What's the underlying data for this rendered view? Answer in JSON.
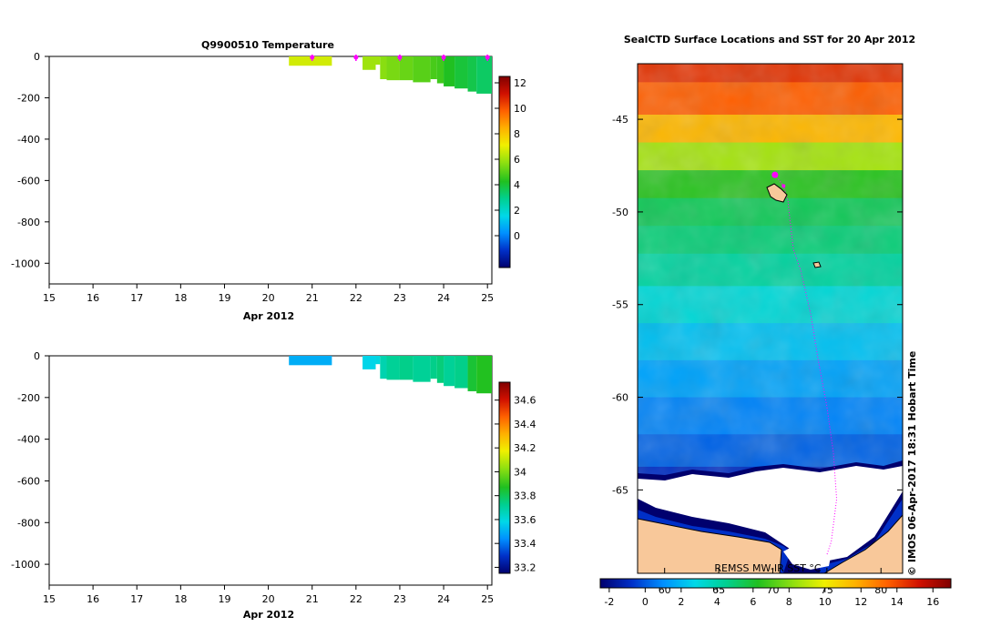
{
  "colors": {
    "land": "#f8c89a",
    "ice": "#ffffff",
    "track": "#ff00ff",
    "temp_colormap": [
      "#00006e",
      "#0030c8",
      "#0090ff",
      "#00d8e8",
      "#00d090",
      "#20c020",
      "#90e010",
      "#f0f000",
      "#ffb000",
      "#ff6000",
      "#d01000",
      "#800000"
    ],
    "sal_colormap": [
      "#00006e",
      "#0030c8",
      "#0090ff",
      "#00d8e8",
      "#00d090",
      "#20c020",
      "#90e010",
      "#f0f000",
      "#ffb000",
      "#ff6000",
      "#d01000",
      "#800000"
    ],
    "sst_colormap": [
      "#00006e",
      "#0030c8",
      "#0090ff",
      "#00d8e8",
      "#00d090",
      "#20c020",
      "#90e010",
      "#f0f000",
      "#ffb000",
      "#ff6000",
      "#d01000",
      "#800000"
    ]
  },
  "chart_data": [
    {
      "id": "temperature",
      "type": "heatmap",
      "title": "Q9900510  Temperature",
      "xlabel": "Apr 2012",
      "x_ticks": [
        "15",
        "16",
        "17",
        "18",
        "19",
        "20",
        "21",
        "22",
        "23",
        "24",
        "25"
      ],
      "xlim": [
        15,
        25.1
      ],
      "y_ticks": [
        "0",
        "-200",
        "-400",
        "-600",
        "-800",
        "-1000"
      ],
      "ylim": [
        -1100,
        0
      ],
      "colorbar": {
        "ticks": [
          "0",
          "2",
          "4",
          "6",
          "8",
          "10",
          "12"
        ],
        "range": [
          -2.5,
          12.5
        ]
      },
      "profile_markers_x": [
        21.0,
        22.0,
        23.0,
        24.0,
        25.0
      ],
      "cells": [
        {
          "x0": 20.47,
          "x1": 21.45,
          "y0": 0,
          "y1": -45,
          "v": 6.6
        },
        {
          "x0": 22.15,
          "x1": 22.45,
          "y0": 0,
          "y1": -65,
          "v": 5.9
        },
        {
          "x0": 22.45,
          "x1": 22.55,
          "y0": 0,
          "y1": -40,
          "v": 5.9
        },
        {
          "x0": 22.55,
          "x1": 22.7,
          "y0": 0,
          "y1": -110,
          "v": 5.6
        },
        {
          "x0": 22.7,
          "x1": 23.0,
          "y0": 0,
          "y1": -115,
          "v": 5.4
        },
        {
          "x0": 23.0,
          "x1": 23.3,
          "y0": 0,
          "y1": -115,
          "v": 5.2
        },
        {
          "x0": 23.3,
          "x1": 23.7,
          "y0": 0,
          "y1": -125,
          "v": 5.0
        },
        {
          "x0": 23.7,
          "x1": 23.85,
          "y0": 0,
          "y1": -110,
          "v": 4.8
        },
        {
          "x0": 23.85,
          "x1": 24.0,
          "y0": 0,
          "y1": -130,
          "v": 4.7
        },
        {
          "x0": 24.0,
          "x1": 24.25,
          "y0": 0,
          "y1": -145,
          "v": 4.3
        },
        {
          "x0": 24.25,
          "x1": 24.55,
          "y0": 0,
          "y1": -155,
          "v": 4.0
        },
        {
          "x0": 24.55,
          "x1": 24.75,
          "y0": 0,
          "y1": -170,
          "v": 3.8
        },
        {
          "x0": 24.75,
          "x1": 25.1,
          "y0": 0,
          "y1": -180,
          "v": 3.5
        }
      ]
    },
    {
      "id": "salinity",
      "type": "heatmap",
      "title": "",
      "xlabel": "Apr 2012",
      "x_ticks": [
        "15",
        "16",
        "17",
        "18",
        "19",
        "20",
        "21",
        "22",
        "23",
        "24",
        "25"
      ],
      "xlim": [
        15,
        25.1
      ],
      "y_ticks": [
        "0",
        "-200",
        "-400",
        "-600",
        "-800",
        "-1000"
      ],
      "ylim": [
        -1100,
        0
      ],
      "colorbar": {
        "ticks": [
          "33.2",
          "33.4",
          "33.6",
          "33.8",
          "34",
          "34.2",
          "34.4",
          "34.6"
        ],
        "range": [
          33.15,
          34.75
        ]
      },
      "cells": [
        {
          "x0": 20.47,
          "x1": 21.45,
          "y0": 0,
          "y1": -45,
          "v": 33.5
        },
        {
          "x0": 22.15,
          "x1": 22.45,
          "y0": 0,
          "y1": -65,
          "v": 33.58
        },
        {
          "x0": 22.45,
          "x1": 22.55,
          "y0": 0,
          "y1": -40,
          "v": 33.6
        },
        {
          "x0": 22.55,
          "x1": 22.7,
          "y0": 0,
          "y1": -110,
          "v": 33.68
        },
        {
          "x0": 22.7,
          "x1": 23.0,
          "y0": 0,
          "y1": -115,
          "v": 33.72
        },
        {
          "x0": 23.0,
          "x1": 23.3,
          "y0": 0,
          "y1": -115,
          "v": 33.74
        },
        {
          "x0": 23.3,
          "x1": 23.7,
          "y0": 0,
          "y1": -125,
          "v": 33.72
        },
        {
          "x0": 23.7,
          "x1": 23.85,
          "y0": 0,
          "y1": -110,
          "v": 33.74
        },
        {
          "x0": 23.85,
          "x1": 24.0,
          "y0": 0,
          "y1": -130,
          "v": 33.76
        },
        {
          "x0": 24.0,
          "x1": 24.25,
          "y0": 0,
          "y1": -145,
          "v": 33.72
        },
        {
          "x0": 24.25,
          "x1": 24.55,
          "y0": 0,
          "y1": -155,
          "v": 33.74
        },
        {
          "x0": 24.55,
          "x1": 24.75,
          "y0": 0,
          "y1": -170,
          "v": 33.85
        },
        {
          "x0": 24.75,
          "x1": 25.1,
          "y0": 0,
          "y1": -180,
          "v": 33.88
        }
      ]
    },
    {
      "id": "sst-map",
      "type": "heatmap",
      "title": "SealCTD Surface Locations and SST for 20 Apr 2012",
      "y_ticks": [
        "-45",
        "-50",
        "-55",
        "-60",
        "-65"
      ],
      "ylim": [
        -69.5,
        -42
      ],
      "x_ticks_top": [
        "60",
        "65",
        "70",
        "75",
        "80"
      ],
      "colorbar": {
        "ticks": [
          "-2",
          "0",
          "2",
          "4",
          "6",
          "8",
          "10",
          "12",
          "14",
          "16"
        ],
        "range": [
          -2.5,
          17
        ]
      },
      "source_label": "REMSS MW-IR SST °C",
      "credit": "© IMOS 06-Apr-2017 18:31 Hobart Time",
      "sst_bands": [
        {
          "lat": -42,
          "v": 14.5
        },
        {
          "lat": -44,
          "v": 13.5
        },
        {
          "lat": -45.5,
          "v": 11.5
        },
        {
          "lat": -47,
          "v": 8.5
        },
        {
          "lat": -48.5,
          "v": 6.5
        },
        {
          "lat": -50,
          "v": 5.5
        },
        {
          "lat": -51.5,
          "v": 5.0
        },
        {
          "lat": -53,
          "v": 4.3
        },
        {
          "lat": -55,
          "v": 3.2
        },
        {
          "lat": -57,
          "v": 2.2
        },
        {
          "lat": -59,
          "v": 1.5
        },
        {
          "lat": -61,
          "v": 0.8
        },
        {
          "lat": -63,
          "v": 0.2
        },
        {
          "lat": -64.5,
          "v": -0.8
        },
        {
          "lat": -65.2,
          "v": -1.8
        }
      ],
      "track_lat": [
        -48.0,
        -48.6,
        -49.4,
        -50.5,
        -52.0,
        -53.2,
        -55.5,
        -58.0,
        -60.5,
        -63.0,
        -65.5,
        -67.8,
        -68.5
      ],
      "track_lon": [
        70.2,
        71.0,
        71.4,
        71.6,
        71.9,
        72.6,
        73.5,
        74.2,
        75.0,
        75.6,
        75.9,
        75.4,
        75.0
      ]
    }
  ]
}
